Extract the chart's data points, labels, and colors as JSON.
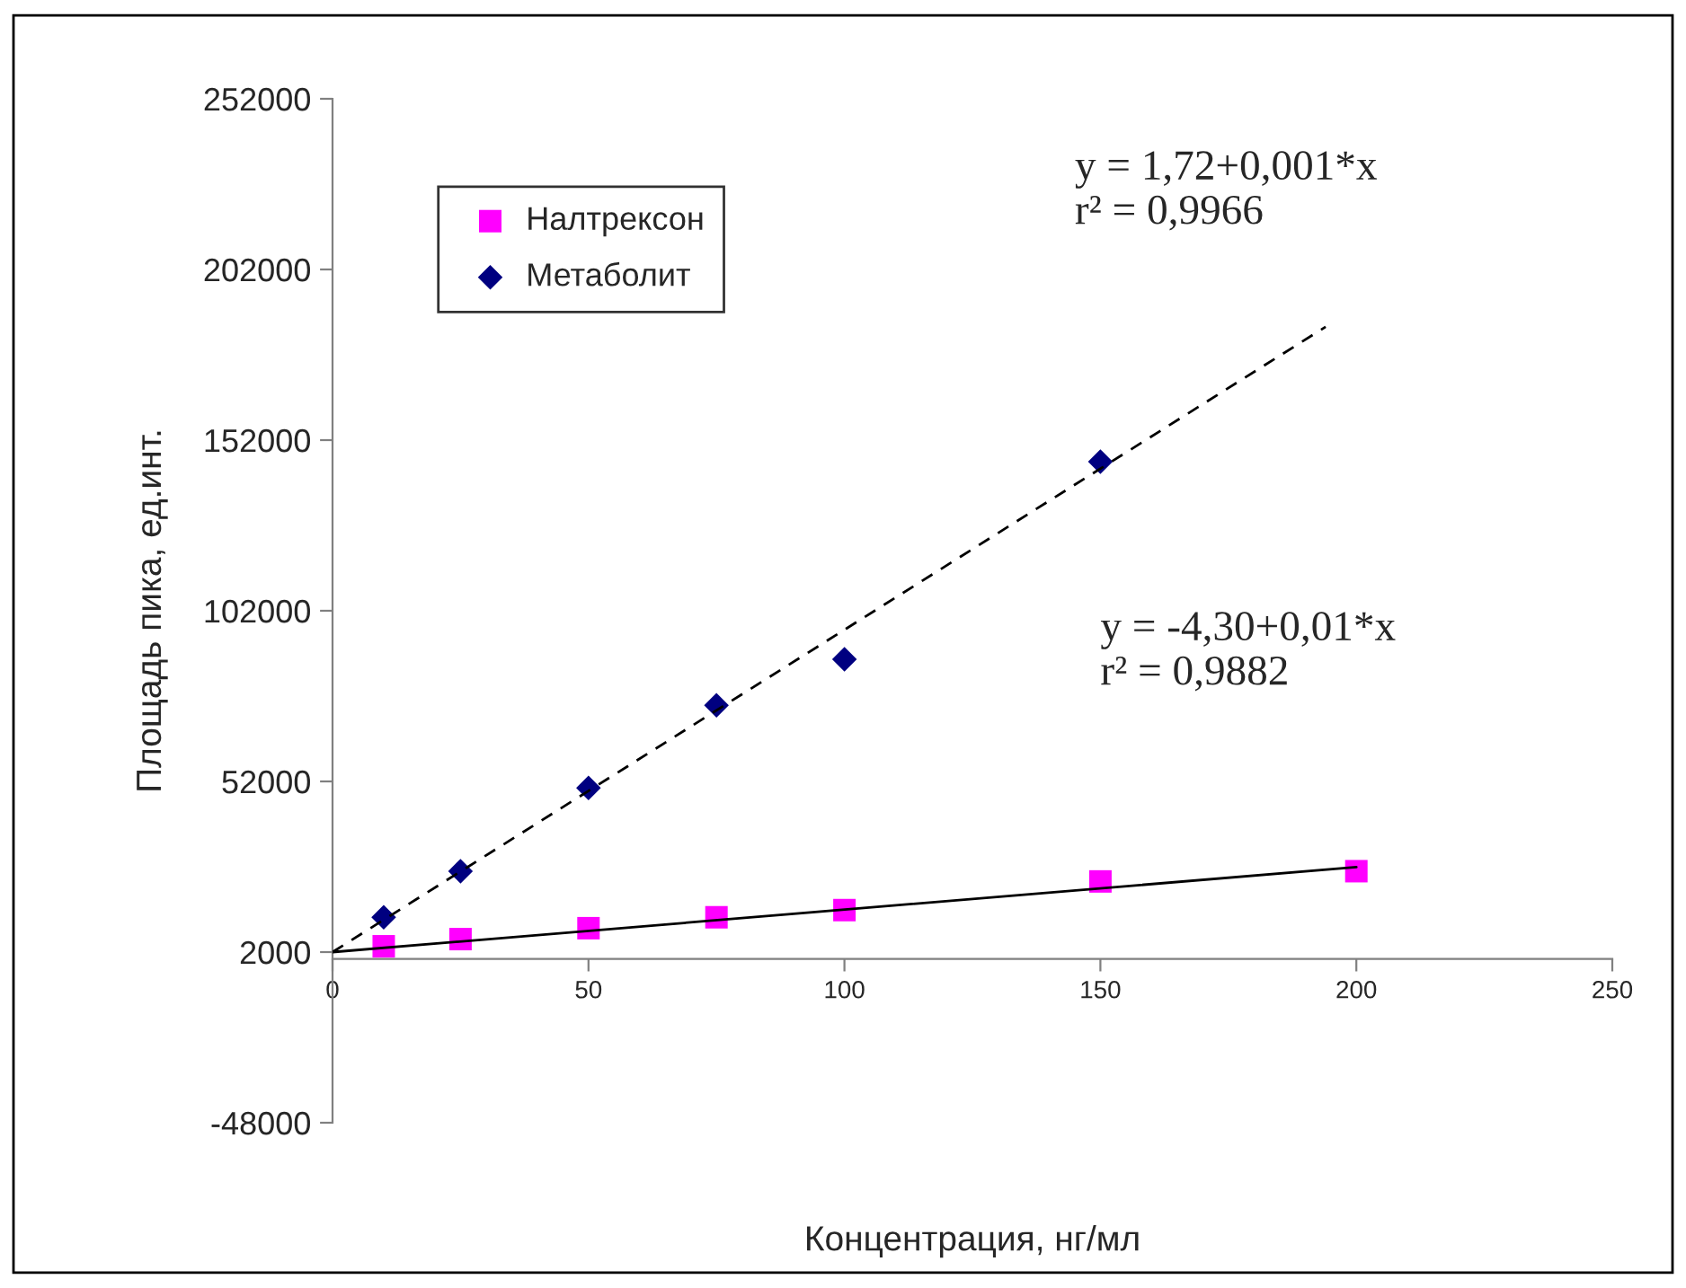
{
  "chart_data": {
    "type": "scatter",
    "xlabel": "Концентрация, нг/мл",
    "ylabel": "Площадь пика, ед.инт.",
    "x": [
      10,
      25,
      50,
      75,
      100,
      150,
      200
    ],
    "series": [
      {
        "name": "Налтрексон",
        "color": "#ff00ff",
        "marker": "square",
        "values": [
          3700,
          5800,
          9000,
          12200,
          14300,
          22700,
          25700
        ]
      },
      {
        "name": "Метаболит",
        "color": "#000080",
        "marker": "diamond",
        "x": [
          10,
          25,
          50,
          75,
          100,
          150
        ],
        "values": [
          12200,
          25700,
          50100,
          74300,
          87800,
          145700
        ]
      },
      {
        "type": "line",
        "color": "#000000",
        "line_style": "solid",
        "x": [
          0,
          200
        ],
        "values": [
          2000,
          26900
        ]
      },
      {
        "type": "line",
        "color": "#000000",
        "line_style": "dashed",
        "x": [
          0,
          194
        ],
        "values": [
          2000,
          185200
        ]
      }
    ],
    "xlim": [
      0,
      250
    ],
    "xticks": [
      0,
      50,
      100,
      150,
      200,
      250
    ],
    "ylim": [
      -48000,
      252000
    ],
    "yticks": [
      -48000,
      2000,
      52000,
      102000,
      152000,
      202000,
      252000
    ],
    "annotations": [
      "y = 1,72+0,001*x\nr² = 0,9966",
      "y = -4,30+0,01*x\nr² = 0,9882"
    ],
    "legend": "top left",
    "grid": false
  }
}
